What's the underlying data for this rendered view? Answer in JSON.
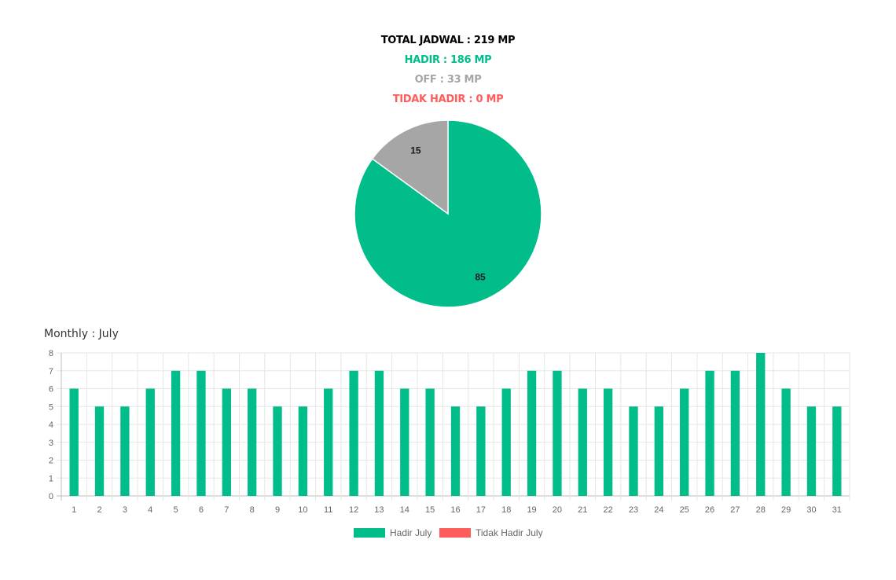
{
  "summary": {
    "total": "TOTAL JADWAL : 219 MP",
    "hadir": "HADIR : 186 MP",
    "off": "OFF : 33 MP",
    "tidak_hadir": "TIDAK HADIR : 0 MP"
  },
  "colors": {
    "hadir": "#00bd8a",
    "off": "#a6a6a6",
    "tidak_hadir": "#ff5c5c",
    "total": "#000000",
    "grid": "#e6e6e6",
    "tick": "#666666"
  },
  "monthly_title": "Monthly : July",
  "chart_data": [
    {
      "type": "pie",
      "categories": [
        "Hadir",
        "Off"
      ],
      "values": [
        85,
        15
      ],
      "data_labels": [
        "85",
        "15"
      ],
      "colors": [
        "#00bd8a",
        "#a6a6a6"
      ]
    },
    {
      "type": "bar",
      "categories": [
        "1",
        "2",
        "3",
        "4",
        "5",
        "6",
        "7",
        "8",
        "9",
        "10",
        "11",
        "12",
        "13",
        "14",
        "15",
        "16",
        "17",
        "18",
        "19",
        "20",
        "21",
        "22",
        "23",
        "24",
        "25",
        "26",
        "27",
        "28",
        "29",
        "30",
        "31"
      ],
      "series": [
        {
          "name": "Hadir July",
          "color": "#00bd8a",
          "values": [
            6,
            5,
            5,
            6,
            7,
            7,
            6,
            6,
            5,
            5,
            6,
            7,
            7,
            6,
            6,
            5,
            5,
            6,
            7,
            7,
            6,
            6,
            5,
            5,
            6,
            7,
            7,
            8,
            6,
            5,
            5
          ]
        },
        {
          "name": "Tidak Hadir July",
          "color": "#ff5c5c",
          "values": [
            0,
            0,
            0,
            0,
            0,
            0,
            0,
            0,
            0,
            0,
            0,
            0,
            0,
            0,
            0,
            0,
            0,
            0,
            0,
            0,
            0,
            0,
            0,
            0,
            0,
            0,
            0,
            0,
            0,
            0,
            0
          ]
        }
      ],
      "ylim": [
        0,
        8
      ],
      "yticks": [
        "0",
        "1",
        "2",
        "3",
        "4",
        "5",
        "6",
        "7",
        "8"
      ],
      "grid": true,
      "legend": "bottom-center"
    }
  ]
}
